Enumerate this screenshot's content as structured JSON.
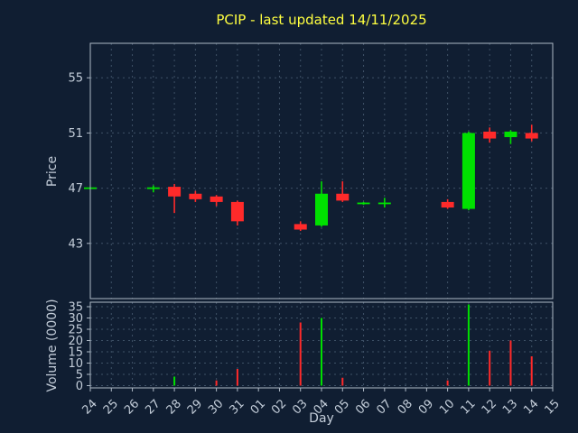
{
  "title": "PCIP - last updated 14/11/2025",
  "colors": {
    "background": "#101e32",
    "text": "#c3cdd9",
    "frame": "#aeb9c6",
    "grid": "#3e5166",
    "title": "#ffff40",
    "up": "#00e000",
    "down": "#ff2a2a"
  },
  "x_axis": {
    "label": "Day",
    "categories": [
      "24",
      "25",
      "26",
      "27",
      "28",
      "29",
      "30",
      "31",
      "01",
      "02",
      "03",
      "04",
      "05",
      "06",
      "07",
      "08",
      "09",
      "10",
      "11",
      "12",
      "13",
      "14",
      "15"
    ]
  },
  "chart_data": [
    {
      "type": "candlestick",
      "title": "PCIP - last updated 14/11/2025",
      "xlabel": "Day",
      "ylabel": "Price",
      "ylim": [
        39,
        57.5
      ],
      "yticks": [
        43,
        47,
        51,
        55
      ],
      "grid": true,
      "legend": false,
      "candles": [
        {
          "day": "24",
          "open": 47.0,
          "high": 47.0,
          "low": 47.0,
          "close": 47.0,
          "dir": "up"
        },
        {
          "day": "27",
          "open": 47.0,
          "high": 47.2,
          "low": 46.7,
          "close": 47.0,
          "dir": "up"
        },
        {
          "day": "28",
          "open": 47.1,
          "high": 47.3,
          "low": 45.2,
          "close": 46.4,
          "dir": "down"
        },
        {
          "day": "29",
          "open": 46.6,
          "high": 46.8,
          "low": 46.0,
          "close": 46.2,
          "dir": "down"
        },
        {
          "day": "30",
          "open": 46.4,
          "high": 46.5,
          "low": 45.7,
          "close": 46.0,
          "dir": "down"
        },
        {
          "day": "31",
          "open": 46.0,
          "high": 46.1,
          "low": 44.3,
          "close": 44.6,
          "dir": "down"
        },
        {
          "day": "03",
          "open": 44.4,
          "high": 44.6,
          "low": 43.9,
          "close": 44.0,
          "dir": "down"
        },
        {
          "day": "04",
          "open": 44.3,
          "high": 47.5,
          "low": 44.2,
          "close": 46.6,
          "dir": "up"
        },
        {
          "day": "05",
          "open": 46.6,
          "high": 47.5,
          "low": 46.0,
          "close": 46.1,
          "dir": "down"
        },
        {
          "day": "06",
          "open": 45.9,
          "high": 46.0,
          "low": 45.8,
          "close": 45.9,
          "dir": "up"
        },
        {
          "day": "07",
          "open": 45.9,
          "high": 46.3,
          "low": 45.6,
          "close": 45.9,
          "dir": "up"
        },
        {
          "day": "10",
          "open": 46.0,
          "high": 46.2,
          "low": 45.5,
          "close": 45.6,
          "dir": "down"
        },
        {
          "day": "11",
          "open": 45.5,
          "high": 51.1,
          "low": 45.4,
          "close": 51.0,
          "dir": "up"
        },
        {
          "day": "12",
          "open": 51.1,
          "high": 51.4,
          "low": 50.3,
          "close": 50.6,
          "dir": "down"
        },
        {
          "day": "13",
          "open": 50.7,
          "high": 51.2,
          "low": 50.2,
          "close": 51.1,
          "dir": "up"
        },
        {
          "day": "14",
          "open": 51.0,
          "high": 51.6,
          "low": 50.4,
          "close": 50.6,
          "dir": "down"
        }
      ]
    },
    {
      "type": "bar",
      "xlabel": "Day",
      "ylabel": "Volume (0000)",
      "ylim": [
        -1,
        37
      ],
      "yticks": [
        0,
        5,
        10,
        15,
        20,
        25,
        30,
        35
      ],
      "grid": true,
      "legend": false,
      "bars": [
        {
          "day": "28",
          "value": 4,
          "dir": "up"
        },
        {
          "day": "30",
          "value": 2.3,
          "dir": "down"
        },
        {
          "day": "31",
          "value": 7.4,
          "dir": "down"
        },
        {
          "day": "03",
          "value": 28,
          "dir": "down"
        },
        {
          "day": "04",
          "value": 30,
          "dir": "up"
        },
        {
          "day": "05",
          "value": 3.5,
          "dir": "down"
        },
        {
          "day": "10",
          "value": 2.3,
          "dir": "down"
        },
        {
          "day": "11",
          "value": 36,
          "dir": "up"
        },
        {
          "day": "12",
          "value": 15.5,
          "dir": "down"
        },
        {
          "day": "13",
          "value": 20,
          "dir": "down"
        },
        {
          "day": "14",
          "value": 13,
          "dir": "down"
        }
      ]
    }
  ]
}
